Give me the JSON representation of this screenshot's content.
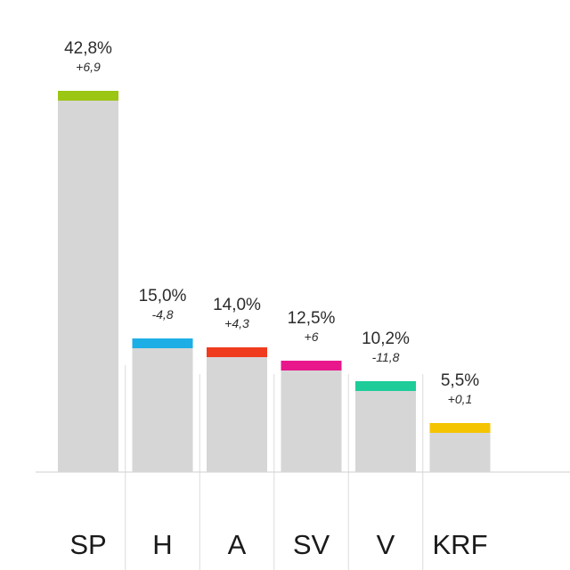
{
  "chart_data": {
    "type": "bar",
    "title": "",
    "xlabel": "",
    "ylabel": "",
    "ylim": [
      0,
      42.8
    ],
    "grid": false,
    "legend": "none",
    "categories": [
      "SP",
      "H",
      "A",
      "SV",
      "V",
      "KRF"
    ],
    "values": [
      42.8,
      15.0,
      14.0,
      12.5,
      10.2,
      5.5
    ],
    "value_labels": [
      "42,8%",
      "15,0%",
      "14,0%",
      "12,5%",
      "10,2%",
      "5,5%"
    ],
    "change_labels": [
      "+6,9",
      "-4,8",
      "+4,3",
      "+6",
      "-11,8",
      "+0,1"
    ],
    "colors": [
      "#9bc614",
      "#1daee6",
      "#f03c1e",
      "#e8178c",
      "#1dcc99",
      "#f5c400"
    ],
    "bar_fill": "#d6d6d6"
  }
}
